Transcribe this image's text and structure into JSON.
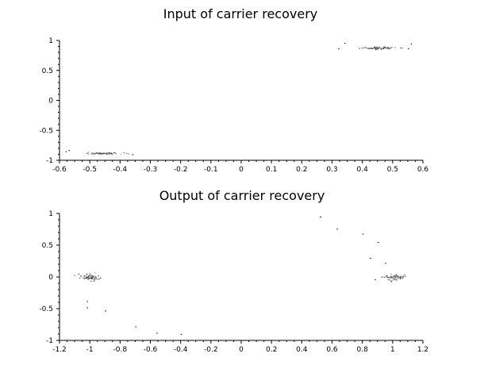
{
  "chart_data": [
    {
      "type": "scatter",
      "title": "Input of carrier recovery",
      "xlabel": "",
      "ylabel": "",
      "xlim": [
        -0.6,
        0.6
      ],
      "ylim": [
        -1,
        1
      ],
      "xticks": [
        "-0.6",
        "-0.5",
        "-0.4",
        "-0.3",
        "-0.2",
        "-0.1",
        "0",
        "0.1",
        "0.2",
        "0.3",
        "0.4",
        "0.5",
        "0.6"
      ],
      "yticks": [
        "-1",
        "-0.5",
        "0",
        "0.5",
        "1"
      ],
      "grid": false,
      "clusters": [
        {
          "center": [
            0.45,
            0.88
          ],
          "spread": [
            0.06,
            0.02
          ],
          "count": 70
        },
        {
          "center": [
            -0.46,
            -0.88
          ],
          "spread": [
            0.06,
            0.015
          ],
          "count": 70
        }
      ],
      "points": [
        [
          0.34,
          0.96
        ],
        [
          0.32,
          0.87
        ],
        [
          0.55,
          0.87
        ],
        [
          0.56,
          0.95
        ],
        [
          -0.57,
          -0.83
        ],
        [
          -0.58,
          -0.85
        ],
        [
          -0.36,
          -0.9
        ]
      ]
    },
    {
      "type": "scatter",
      "title": "Output of carrier recovery",
      "xlabel": "",
      "ylabel": "",
      "xlim": [
        -1.2,
        1.2
      ],
      "ylim": [
        -1,
        1
      ],
      "xticks": [
        "-1.2",
        "-1",
        "-0.8",
        "-0.6",
        "-0.4",
        "-0.2",
        "0",
        "0.2",
        "0.4",
        "0.6",
        "0.8",
        "1",
        "1.2"
      ],
      "yticks": [
        "-1",
        "-0.5",
        "0",
        "0.5",
        "1"
      ],
      "grid": false,
      "clusters": [
        {
          "center": [
            -1.0,
            0.0
          ],
          "spread": [
            0.06,
            0.05
          ],
          "count": 70
        },
        {
          "center": [
            1.0,
            0.0
          ],
          "spread": [
            0.07,
            0.05
          ],
          "count": 70
        }
      ],
      "points": [
        [
          -1.02,
          -0.38
        ],
        [
          -1.02,
          -0.48
        ],
        [
          -0.9,
          -0.53
        ],
        [
          -0.7,
          -0.78
        ],
        [
          -0.56,
          -0.88
        ],
        [
          -0.4,
          -0.9
        ],
        [
          0.52,
          0.95
        ],
        [
          0.63,
          0.76
        ],
        [
          0.8,
          0.68
        ],
        [
          0.9,
          0.55
        ],
        [
          0.85,
          0.3
        ],
        [
          0.95,
          0.22
        ]
      ]
    }
  ]
}
